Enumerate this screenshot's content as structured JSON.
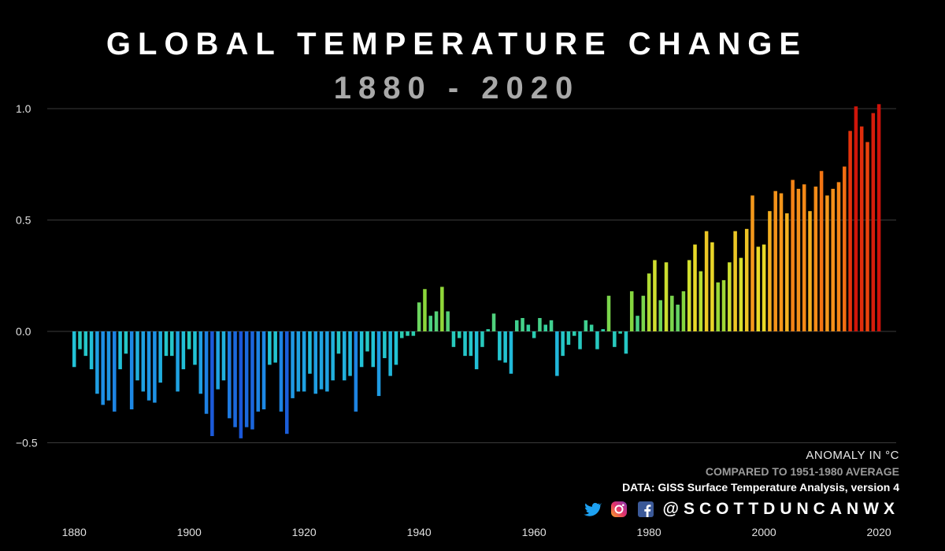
{
  "header": {
    "title": "GLOBAL TEMPERATURE CHANGE",
    "subtitle": "1880 - 2020"
  },
  "credits": {
    "unit_label": "ANOMALY IN °C",
    "baseline_label": "COMPARED TO 1951-1980 AVERAGE",
    "source_label": "DATA: GISS Surface Temperature Analysis, version 4",
    "handle": "@SCOTTDUNCANWX",
    "icons": [
      "twitter-icon",
      "instagram-icon",
      "facebook-icon"
    ]
  },
  "chart_data": {
    "type": "bar",
    "title": "GLOBAL TEMPERATURE CHANGE",
    "subtitle": "1880 - 2020",
    "xlabel": "",
    "ylabel": "ANOMALY IN °C",
    "xlim": [
      1876,
      2023
    ],
    "ylim": [
      -0.85,
      1.35
    ],
    "yticks": [
      1.0,
      0.5,
      0.0,
      -0.5
    ],
    "ytick_labels": [
      "1.0",
      "0.5",
      "0.0",
      "−0.5"
    ],
    "xticks": [
      1880,
      1900,
      1920,
      1940,
      1960,
      1980,
      2000,
      2020
    ],
    "xtick_labels": [
      "1880",
      "1900",
      "1920",
      "1940",
      "1960",
      "1980",
      "2000",
      "2020"
    ],
    "grid": true,
    "color_scale": [
      "#1a4fd6",
      "#1e90e6",
      "#22c3d6",
      "#2ecfa4",
      "#8ad63a",
      "#e6e02a",
      "#f4b020",
      "#f47a14",
      "#e8380c",
      "#c80a0a"
    ],
    "x": [
      1880,
      1881,
      1882,
      1883,
      1884,
      1885,
      1886,
      1887,
      1888,
      1889,
      1890,
      1891,
      1892,
      1893,
      1894,
      1895,
      1896,
      1897,
      1898,
      1899,
      1900,
      1901,
      1902,
      1903,
      1904,
      1905,
      1906,
      1907,
      1908,
      1909,
      1910,
      1911,
      1912,
      1913,
      1914,
      1915,
      1916,
      1917,
      1918,
      1919,
      1920,
      1921,
      1922,
      1923,
      1924,
      1925,
      1926,
      1927,
      1928,
      1929,
      1930,
      1931,
      1932,
      1933,
      1934,
      1935,
      1936,
      1937,
      1938,
      1939,
      1940,
      1941,
      1942,
      1943,
      1944,
      1945,
      1946,
      1947,
      1948,
      1949,
      1950,
      1951,
      1952,
      1953,
      1954,
      1955,
      1956,
      1957,
      1958,
      1959,
      1960,
      1961,
      1962,
      1963,
      1964,
      1965,
      1966,
      1967,
      1968,
      1969,
      1970,
      1971,
      1972,
      1973,
      1974,
      1975,
      1976,
      1977,
      1978,
      1979,
      1980,
      1981,
      1982,
      1983,
      1984,
      1985,
      1986,
      1987,
      1988,
      1989,
      1990,
      1991,
      1992,
      1993,
      1994,
      1995,
      1996,
      1997,
      1998,
      1999,
      2000,
      2001,
      2002,
      2003,
      2004,
      2005,
      2006,
      2007,
      2008,
      2009,
      2010,
      2011,
      2012,
      2013,
      2014,
      2015,
      2016,
      2017,
      2018,
      2019,
      2020
    ],
    "values": [
      -0.16,
      -0.08,
      -0.11,
      -0.17,
      -0.28,
      -0.33,
      -0.31,
      -0.36,
      -0.17,
      -0.1,
      -0.35,
      -0.22,
      -0.27,
      -0.31,
      -0.32,
      -0.23,
      -0.11,
      -0.11,
      -0.27,
      -0.17,
      -0.08,
      -0.15,
      -0.28,
      -0.37,
      -0.47,
      -0.26,
      -0.22,
      -0.39,
      -0.43,
      -0.48,
      -0.43,
      -0.44,
      -0.36,
      -0.35,
      -0.15,
      -0.14,
      -0.36,
      -0.46,
      -0.3,
      -0.27,
      -0.27,
      -0.19,
      -0.28,
      -0.26,
      -0.27,
      -0.22,
      -0.1,
      -0.22,
      -0.2,
      -0.36,
      -0.16,
      -0.09,
      -0.16,
      -0.29,
      -0.12,
      -0.2,
      -0.15,
      -0.03,
      -0.02,
      -0.02,
      0.13,
      0.19,
      0.07,
      0.09,
      0.2,
      0.09,
      -0.07,
      -0.03,
      -0.11,
      -0.11,
      -0.17,
      -0.07,
      0.01,
      0.08,
      -0.13,
      -0.14,
      -0.19,
      0.05,
      0.06,
      0.03,
      -0.03,
      0.06,
      0.03,
      0.05,
      -0.2,
      -0.11,
      -0.06,
      -0.02,
      -0.08,
      0.05,
      0.03,
      -0.08,
      0.01,
      0.16,
      -0.07,
      -0.01,
      -0.1,
      0.18,
      0.07,
      0.16,
      0.26,
      0.32,
      0.14,
      0.31,
      0.16,
      0.12,
      0.18,
      0.32,
      0.39,
      0.27,
      0.45,
      0.4,
      0.22,
      0.23,
      0.31,
      0.45,
      0.33,
      0.46,
      0.61,
      0.38,
      0.39,
      0.54,
      0.63,
      0.62,
      0.53,
      0.68,
      0.64,
      0.66,
      0.54,
      0.65,
      0.72,
      0.61,
      0.64,
      0.67,
      0.74,
      0.9,
      1.01,
      0.92,
      0.85,
      0.98,
      1.02
    ]
  }
}
